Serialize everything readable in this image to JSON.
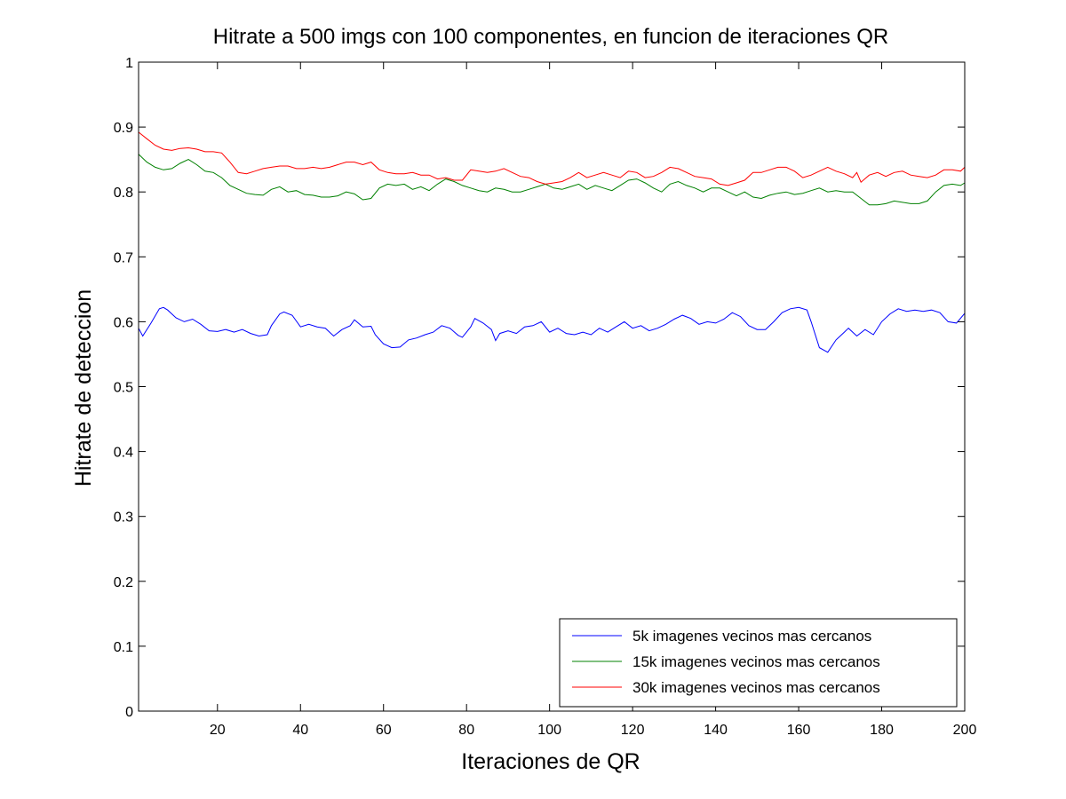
{
  "chart_data": {
    "type": "line",
    "title": "Hitrate a 500 imgs con 100 componentes, en funcion de iteraciones QR",
    "xlabel": "Iteraciones de QR",
    "ylabel": "Hitrate de deteccion",
    "xlim": [
      1,
      200
    ],
    "ylim": [
      0,
      1
    ],
    "xticks": [
      20,
      40,
      60,
      80,
      100,
      120,
      140,
      160,
      180,
      200
    ],
    "yticks": [
      0,
      0.1,
      0.2,
      0.3,
      0.4,
      0.5,
      0.6,
      0.7,
      0.8,
      0.9,
      1
    ],
    "ytick_labels": [
      "0",
      "0.1",
      "0.2",
      "0.3",
      "0.4",
      "0.5",
      "0.6",
      "0.7",
      "0.8",
      "0.9",
      "1"
    ],
    "legend_position": "bottom-right",
    "grid": false,
    "series": [
      {
        "name": "5k imagenes vecinos mas cercanos",
        "color": "#0000ff",
        "points": [
          [
            1,
            0.59
          ],
          [
            2,
            0.578
          ],
          [
            4,
            0.598
          ],
          [
            6,
            0.62
          ],
          [
            7,
            0.622
          ],
          [
            8,
            0.618
          ],
          [
            10,
            0.606
          ],
          [
            12,
            0.6
          ],
          [
            14,
            0.604
          ],
          [
            16,
            0.596
          ],
          [
            18,
            0.586
          ],
          [
            20,
            0.585
          ],
          [
            22,
            0.588
          ],
          [
            24,
            0.584
          ],
          [
            26,
            0.588
          ],
          [
            28,
            0.582
          ],
          [
            30,
            0.578
          ],
          [
            32,
            0.58
          ],
          [
            33,
            0.594
          ],
          [
            35,
            0.612
          ],
          [
            36,
            0.615
          ],
          [
            38,
            0.61
          ],
          [
            40,
            0.592
          ],
          [
            42,
            0.596
          ],
          [
            44,
            0.592
          ],
          [
            46,
            0.59
          ],
          [
            48,
            0.578
          ],
          [
            50,
            0.588
          ],
          [
            52,
            0.594
          ],
          [
            53,
            0.603
          ],
          [
            55,
            0.592
          ],
          [
            57,
            0.593
          ],
          [
            58,
            0.58
          ],
          [
            60,
            0.566
          ],
          [
            62,
            0.56
          ],
          [
            64,
            0.561
          ],
          [
            66,
            0.572
          ],
          [
            68,
            0.575
          ],
          [
            70,
            0.58
          ],
          [
            72,
            0.584
          ],
          [
            74,
            0.594
          ],
          [
            76,
            0.59
          ],
          [
            78,
            0.579
          ],
          [
            79,
            0.576
          ],
          [
            81,
            0.592
          ],
          [
            82,
            0.605
          ],
          [
            84,
            0.598
          ],
          [
            86,
            0.588
          ],
          [
            87,
            0.571
          ],
          [
            88,
            0.582
          ],
          [
            90,
            0.586
          ],
          [
            92,
            0.582
          ],
          [
            94,
            0.592
          ],
          [
            96,
            0.594
          ],
          [
            98,
            0.6
          ],
          [
            100,
            0.584
          ],
          [
            102,
            0.59
          ],
          [
            104,
            0.582
          ],
          [
            106,
            0.58
          ],
          [
            108,
            0.584
          ],
          [
            110,
            0.58
          ],
          [
            112,
            0.59
          ],
          [
            114,
            0.584
          ],
          [
            116,
            0.592
          ],
          [
            118,
            0.6
          ],
          [
            120,
            0.59
          ],
          [
            122,
            0.594
          ],
          [
            124,
            0.586
          ],
          [
            126,
            0.59
          ],
          [
            128,
            0.596
          ],
          [
            130,
            0.604
          ],
          [
            132,
            0.61
          ],
          [
            134,
            0.605
          ],
          [
            136,
            0.596
          ],
          [
            138,
            0.6
          ],
          [
            140,
            0.598
          ],
          [
            142,
            0.604
          ],
          [
            144,
            0.614
          ],
          [
            146,
            0.608
          ],
          [
            148,
            0.594
          ],
          [
            150,
            0.588
          ],
          [
            152,
            0.588
          ],
          [
            154,
            0.6
          ],
          [
            156,
            0.614
          ],
          [
            158,
            0.62
          ],
          [
            160,
            0.622
          ],
          [
            162,
            0.618
          ],
          [
            163,
            0.6
          ],
          [
            165,
            0.56
          ],
          [
            167,
            0.553
          ],
          [
            169,
            0.572
          ],
          [
            171,
            0.584
          ],
          [
            172,
            0.59
          ],
          [
            174,
            0.578
          ],
          [
            176,
            0.588
          ],
          [
            178,
            0.58
          ],
          [
            180,
            0.6
          ],
          [
            182,
            0.612
          ],
          [
            184,
            0.62
          ],
          [
            186,
            0.616
          ],
          [
            188,
            0.618
          ],
          [
            190,
            0.616
          ],
          [
            192,
            0.618
          ],
          [
            194,
            0.614
          ],
          [
            196,
            0.6
          ],
          [
            198,
            0.598
          ],
          [
            200,
            0.613
          ]
        ]
      },
      {
        "name": "15k imagenes vecinos mas cercanos",
        "color": "#008000",
        "points": [
          [
            1,
            0.858
          ],
          [
            3,
            0.846
          ],
          [
            5,
            0.838
          ],
          [
            7,
            0.834
          ],
          [
            9,
            0.836
          ],
          [
            11,
            0.844
          ],
          [
            13,
            0.85
          ],
          [
            15,
            0.842
          ],
          [
            17,
            0.832
          ],
          [
            19,
            0.83
          ],
          [
            21,
            0.822
          ],
          [
            23,
            0.81
          ],
          [
            25,
            0.804
          ],
          [
            27,
            0.798
          ],
          [
            29,
            0.796
          ],
          [
            31,
            0.795
          ],
          [
            33,
            0.804
          ],
          [
            35,
            0.808
          ],
          [
            37,
            0.8
          ],
          [
            39,
            0.802
          ],
          [
            41,
            0.796
          ],
          [
            43,
            0.795
          ],
          [
            45,
            0.792
          ],
          [
            47,
            0.792
          ],
          [
            49,
            0.794
          ],
          [
            51,
            0.8
          ],
          [
            53,
            0.797
          ],
          [
            55,
            0.788
          ],
          [
            57,
            0.79
          ],
          [
            59,
            0.806
          ],
          [
            61,
            0.812
          ],
          [
            63,
            0.81
          ],
          [
            65,
            0.812
          ],
          [
            67,
            0.804
          ],
          [
            69,
            0.808
          ],
          [
            71,
            0.802
          ],
          [
            73,
            0.812
          ],
          [
            75,
            0.82
          ],
          [
            77,
            0.816
          ],
          [
            79,
            0.81
          ],
          [
            81,
            0.806
          ],
          [
            83,
            0.802
          ],
          [
            85,
            0.8
          ],
          [
            87,
            0.806
          ],
          [
            89,
            0.804
          ],
          [
            91,
            0.8
          ],
          [
            93,
            0.8
          ],
          [
            95,
            0.804
          ],
          [
            97,
            0.808
          ],
          [
            99,
            0.812
          ],
          [
            101,
            0.806
          ],
          [
            103,
            0.804
          ],
          [
            105,
            0.808
          ],
          [
            107,
            0.812
          ],
          [
            109,
            0.804
          ],
          [
            111,
            0.81
          ],
          [
            113,
            0.806
          ],
          [
            115,
            0.802
          ],
          [
            117,
            0.81
          ],
          [
            119,
            0.818
          ],
          [
            121,
            0.82
          ],
          [
            123,
            0.814
          ],
          [
            125,
            0.806
          ],
          [
            127,
            0.8
          ],
          [
            129,
            0.812
          ],
          [
            131,
            0.816
          ],
          [
            133,
            0.81
          ],
          [
            135,
            0.806
          ],
          [
            137,
            0.8
          ],
          [
            139,
            0.806
          ],
          [
            141,
            0.806
          ],
          [
            143,
            0.8
          ],
          [
            145,
            0.794
          ],
          [
            147,
            0.8
          ],
          [
            149,
            0.792
          ],
          [
            151,
            0.79
          ],
          [
            153,
            0.795
          ],
          [
            155,
            0.798
          ],
          [
            157,
            0.8
          ],
          [
            159,
            0.796
          ],
          [
            161,
            0.798
          ],
          [
            163,
            0.802
          ],
          [
            165,
            0.806
          ],
          [
            167,
            0.8
          ],
          [
            169,
            0.802
          ],
          [
            171,
            0.8
          ],
          [
            173,
            0.8
          ],
          [
            175,
            0.79
          ],
          [
            177,
            0.78
          ],
          [
            179,
            0.78
          ],
          [
            181,
            0.782
          ],
          [
            183,
            0.786
          ],
          [
            185,
            0.784
          ],
          [
            187,
            0.782
          ],
          [
            189,
            0.782
          ],
          [
            191,
            0.786
          ],
          [
            193,
            0.8
          ],
          [
            195,
            0.81
          ],
          [
            197,
            0.812
          ],
          [
            199,
            0.81
          ],
          [
            200,
            0.814
          ]
        ]
      },
      {
        "name": "30k imagenes vecinos mas cercanos",
        "color": "#ff0000",
        "points": [
          [
            1,
            0.892
          ],
          [
            3,
            0.882
          ],
          [
            5,
            0.872
          ],
          [
            7,
            0.866
          ],
          [
            9,
            0.864
          ],
          [
            11,
            0.867
          ],
          [
            13,
            0.868
          ],
          [
            15,
            0.866
          ],
          [
            17,
            0.862
          ],
          [
            19,
            0.862
          ],
          [
            21,
            0.86
          ],
          [
            23,
            0.846
          ],
          [
            25,
            0.83
          ],
          [
            27,
            0.828
          ],
          [
            29,
            0.832
          ],
          [
            31,
            0.836
          ],
          [
            33,
            0.838
          ],
          [
            35,
            0.84
          ],
          [
            37,
            0.84
          ],
          [
            39,
            0.836
          ],
          [
            41,
            0.836
          ],
          [
            43,
            0.838
          ],
          [
            45,
            0.836
          ],
          [
            47,
            0.838
          ],
          [
            49,
            0.842
          ],
          [
            51,
            0.846
          ],
          [
            53,
            0.846
          ],
          [
            55,
            0.842
          ],
          [
            57,
            0.846
          ],
          [
            59,
            0.834
          ],
          [
            61,
            0.83
          ],
          [
            63,
            0.828
          ],
          [
            65,
            0.828
          ],
          [
            67,
            0.83
          ],
          [
            69,
            0.826
          ],
          [
            71,
            0.826
          ],
          [
            73,
            0.82
          ],
          [
            75,
            0.822
          ],
          [
            77,
            0.818
          ],
          [
            79,
            0.818
          ],
          [
            81,
            0.834
          ],
          [
            83,
            0.832
          ],
          [
            85,
            0.83
          ],
          [
            87,
            0.832
          ],
          [
            89,
            0.836
          ],
          [
            91,
            0.83
          ],
          [
            93,
            0.824
          ],
          [
            95,
            0.822
          ],
          [
            97,
            0.816
          ],
          [
            99,
            0.812
          ],
          [
            101,
            0.814
          ],
          [
            103,
            0.816
          ],
          [
            105,
            0.822
          ],
          [
            107,
            0.83
          ],
          [
            109,
            0.822
          ],
          [
            111,
            0.826
          ],
          [
            113,
            0.83
          ],
          [
            115,
            0.826
          ],
          [
            117,
            0.822
          ],
          [
            119,
            0.832
          ],
          [
            121,
            0.83
          ],
          [
            123,
            0.822
          ],
          [
            125,
            0.824
          ],
          [
            127,
            0.83
          ],
          [
            129,
            0.838
          ],
          [
            131,
            0.836
          ],
          [
            133,
            0.83
          ],
          [
            135,
            0.824
          ],
          [
            137,
            0.822
          ],
          [
            139,
            0.82
          ],
          [
            141,
            0.812
          ],
          [
            143,
            0.81
          ],
          [
            145,
            0.814
          ],
          [
            147,
            0.818
          ],
          [
            149,
            0.83
          ],
          [
            151,
            0.83
          ],
          [
            153,
            0.834
          ],
          [
            155,
            0.838
          ],
          [
            157,
            0.838
          ],
          [
            159,
            0.832
          ],
          [
            161,
            0.822
          ],
          [
            163,
            0.826
          ],
          [
            165,
            0.832
          ],
          [
            167,
            0.838
          ],
          [
            169,
            0.832
          ],
          [
            171,
            0.828
          ],
          [
            173,
            0.822
          ],
          [
            174,
            0.83
          ],
          [
            175,
            0.815
          ],
          [
            177,
            0.826
          ],
          [
            179,
            0.83
          ],
          [
            181,
            0.824
          ],
          [
            183,
            0.83
          ],
          [
            185,
            0.832
          ],
          [
            187,
            0.826
          ],
          [
            189,
            0.824
          ],
          [
            191,
            0.822
          ],
          [
            193,
            0.826
          ],
          [
            195,
            0.834
          ],
          [
            197,
            0.834
          ],
          [
            199,
            0.832
          ],
          [
            200,
            0.838
          ]
        ]
      }
    ]
  }
}
